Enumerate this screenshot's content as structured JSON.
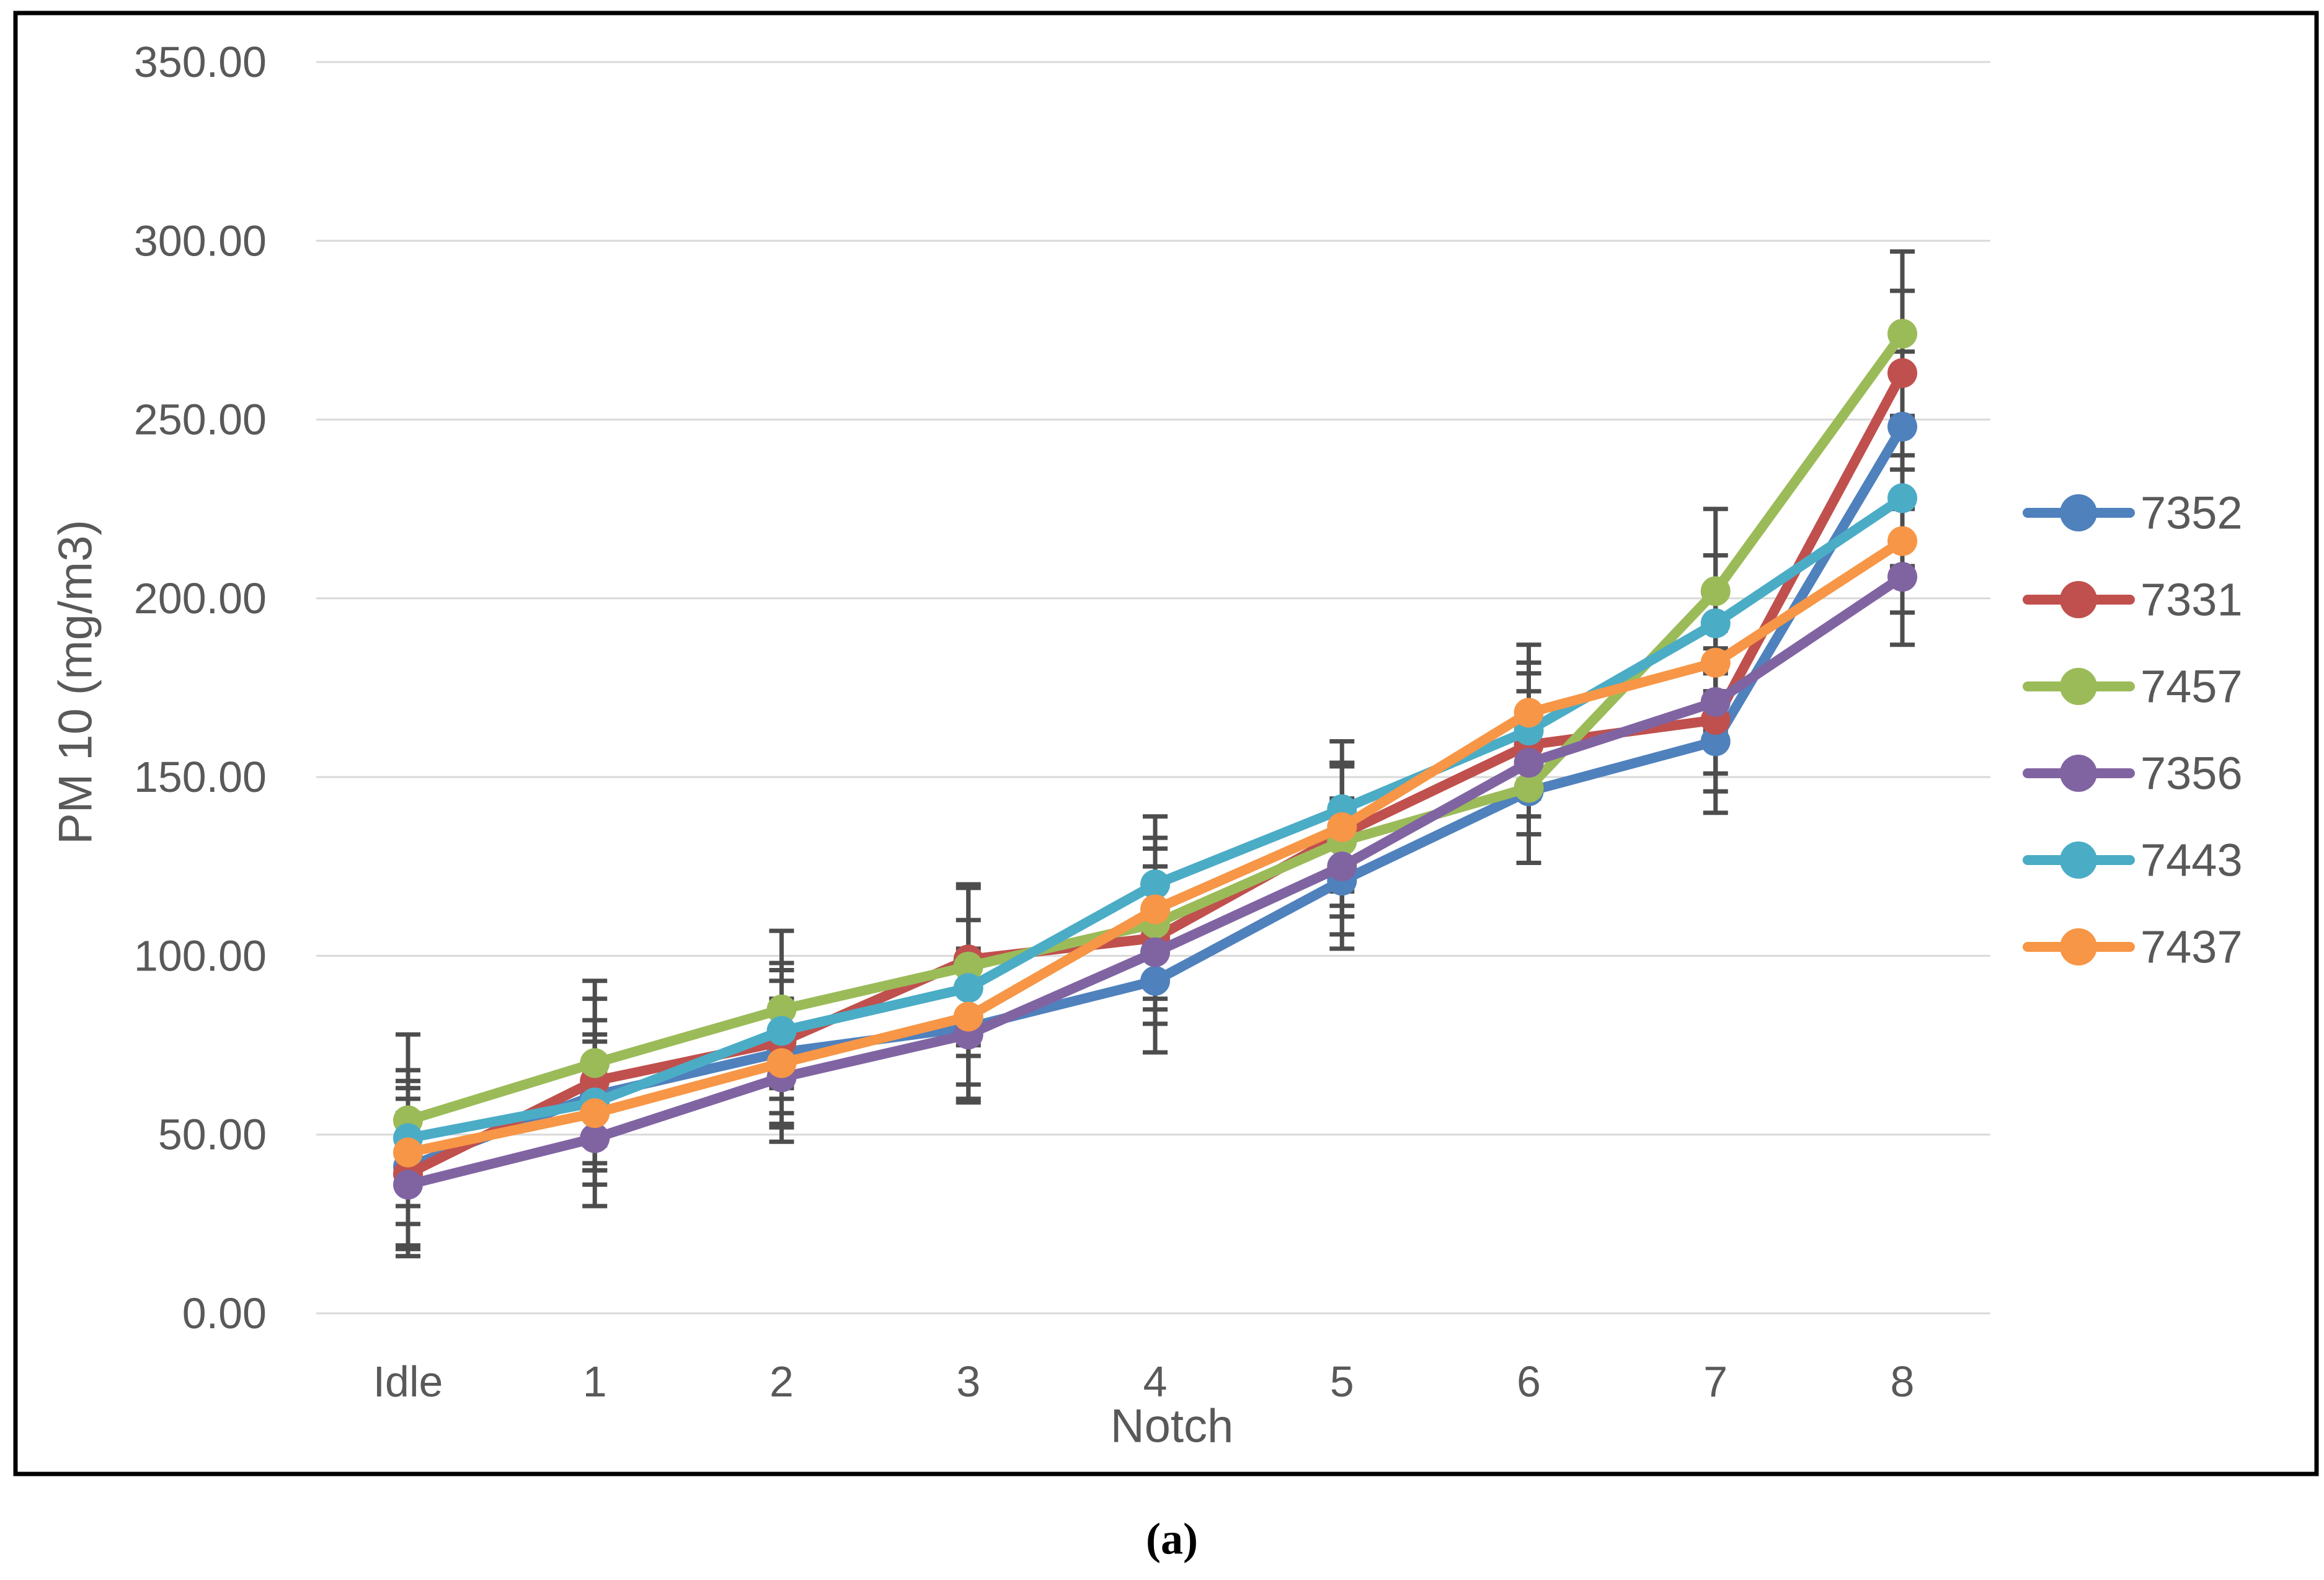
{
  "figure": {
    "caption": "(a)"
  },
  "chart_data": {
    "type": "line",
    "title": "",
    "xlabel": "Notch",
    "ylabel": "PM 10 (mg/m3)",
    "categories": [
      "Idle",
      "1",
      "2",
      "3",
      "4",
      "5",
      "6",
      "7",
      "8"
    ],
    "y_axis": {
      "min": 0,
      "max": 350,
      "step": 50,
      "tick_labels": [
        "0.00",
        "50.00",
        "100.00",
        "150.00",
        "200.00",
        "250.00",
        "300.00",
        "350.00"
      ]
    },
    "grid": true,
    "legend_position": "right",
    "gridline_color": "#D9D9D9",
    "error_bar_color": "#4D4D4D",
    "text_color": "#595959",
    "marker_style": "circle",
    "series": [
      {
        "name": "7352",
        "color": "#4F81BD",
        "values": [
          41,
          61,
          73,
          80,
          93,
          121,
          146,
          160,
          248
        ],
        "errors": [
          22,
          21,
          20,
          20,
          20,
          19,
          20,
          20,
          21
        ]
      },
      {
        "name": "7331",
        "color": "#C0504D",
        "values": [
          39,
          65,
          76,
          99,
          105,
          134,
          159,
          166,
          263
        ],
        "errors": [
          21,
          23,
          20,
          21,
          20,
          20,
          20,
          20,
          23
        ]
      },
      {
        "name": "7457",
        "color": "#9BBB59",
        "values": [
          54,
          70,
          85,
          97,
          109,
          132,
          147,
          202,
          274
        ],
        "errors": [
          24,
          23,
          22,
          22,
          21,
          21,
          21,
          23,
          23
        ]
      },
      {
        "name": "7356",
        "color": "#8064A2",
        "values": [
          36,
          49,
          66,
          78,
          101,
          125,
          154,
          171,
          206
        ],
        "errors": [
          20,
          19,
          18,
          19,
          20,
          19,
          20,
          20,
          19
        ]
      },
      {
        "name": "7443",
        "color": "#4BACC6",
        "values": [
          49,
          59,
          79,
          91,
          120,
          141,
          163,
          193,
          228
        ],
        "errors": [
          19,
          19,
          19,
          19,
          19,
          19,
          19,
          19,
          19
        ]
      },
      {
        "name": "7437",
        "color": "#F79646",
        "values": [
          45,
          56,
          70,
          83,
          113,
          136,
          168,
          182,
          216
        ],
        "errors": [
          20,
          20,
          18,
          19,
          20,
          18,
          19,
          19,
          20
        ]
      }
    ]
  }
}
